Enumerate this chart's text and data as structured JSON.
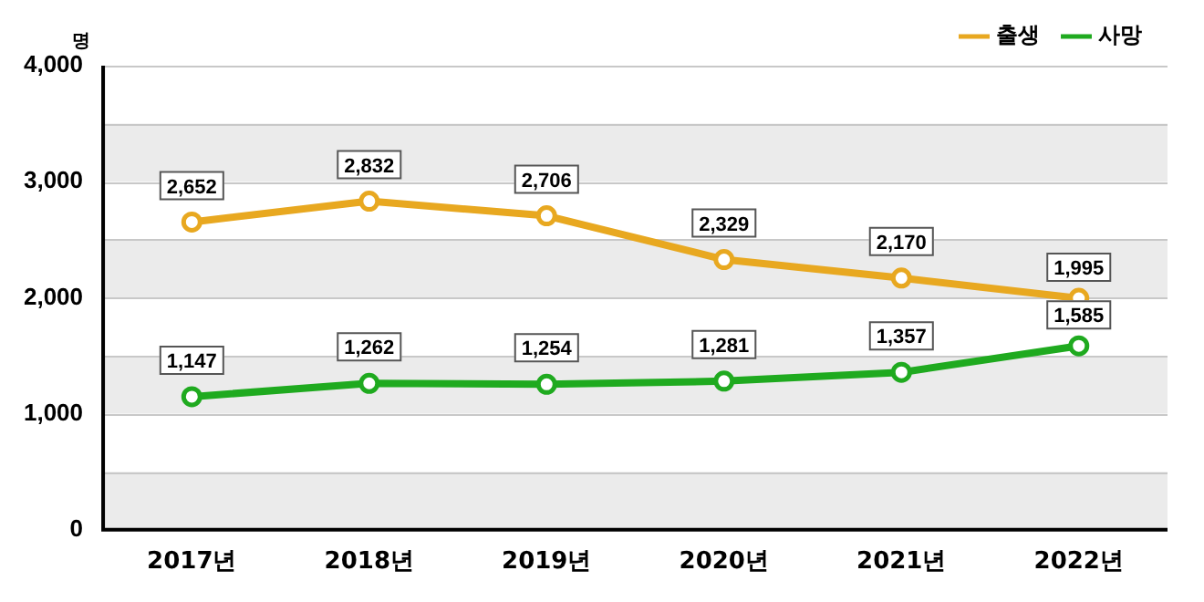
{
  "chart_data": {
    "type": "line",
    "ylabel": "명",
    "categories": [
      "2017년",
      "2018년",
      "2019년",
      "2020년",
      "2021년",
      "2022년"
    ],
    "series": [
      {
        "name": "출생",
        "color": "#e8a820",
        "values": [
          2652,
          2832,
          2706,
          2329,
          2170,
          1995
        ],
        "value_labels": [
          "2,652",
          "2,832",
          "2,706",
          "2,329",
          "2,170",
          "1,995"
        ]
      },
      {
        "name": "사망",
        "color": "#1faa1f",
        "values": [
          1147,
          1262,
          1254,
          1281,
          1357,
          1585
        ],
        "value_labels": [
          "1,147",
          "1,262",
          "1,254",
          "1,281",
          "1,357",
          "1,585"
        ]
      }
    ],
    "ylim": [
      0,
      4000
    ],
    "yticks": [
      0,
      {
        "value": 500,
        "label": null
      },
      {
        "value": 1000,
        "label": "1,000"
      },
      {
        "value": 1500,
        "label": null
      },
      {
        "value": 2000,
        "label": "2,000"
      },
      {
        "value": 2500,
        "label": null
      },
      {
        "value": 3000,
        "label": "3,000"
      },
      {
        "value": 3500,
        "label": null
      },
      {
        "value": 4000,
        "label": "4,000"
      }
    ],
    "bands": [
      {
        "axis": "y",
        "from": 0,
        "to": 500,
        "color": "#ebebeb"
      },
      {
        "axis": "y",
        "from": 1000,
        "to": 1500,
        "color": "#ebebeb"
      },
      {
        "axis": "y",
        "from": 2000,
        "to": 2500,
        "color": "#ebebeb"
      },
      {
        "axis": "y",
        "from": 3000,
        "to": 3500,
        "color": "#ebebeb"
      }
    ],
    "grid": "y",
    "legend": "top right",
    "marker": "circle",
    "line_style": "solid"
  }
}
